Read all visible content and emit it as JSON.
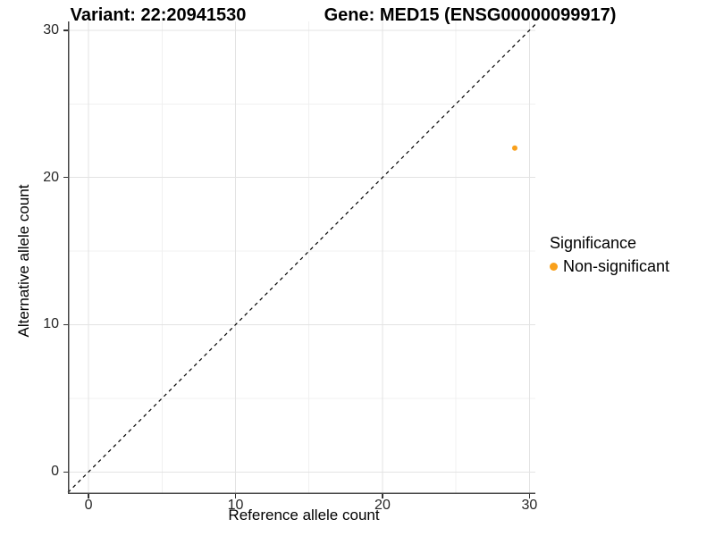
{
  "chart_data": {
    "type": "scatter",
    "titles": {
      "left": "Variant: 22:20941530",
      "right": "Gene: MED15 (ENSG00000099917)"
    },
    "xlabel": "Reference allele count",
    "ylabel": "Alternative allele count",
    "xlim": [
      -1.4,
      30.4
    ],
    "ylim": [
      -1.5,
      30.6
    ],
    "x_ticks": [
      0,
      10,
      20,
      30
    ],
    "y_ticks": [
      0,
      10,
      20,
      30
    ],
    "x_minor_ticks": [
      5,
      15,
      25
    ],
    "y_minor_ticks": [
      5,
      15,
      25
    ],
    "grid": true,
    "identity_line": {
      "type": "y=x",
      "style": "dashed",
      "color": "#000000"
    },
    "series": [
      {
        "name": "Non-significant",
        "color": "#F9A01B",
        "point_radius": 3,
        "points": [
          {
            "x": 29,
            "y": 22
          }
        ]
      }
    ],
    "legend": {
      "title": "Significance",
      "position": "right",
      "items": [
        {
          "label": "Non-significant",
          "color": "#F9A01B"
        }
      ]
    },
    "colors": {
      "background": "#FFFFFF",
      "grid_major": "#E3E3E3",
      "grid_minor": "#F0F0F0",
      "axis_line": "#474747",
      "tick_mark": "#333333",
      "tick_label": "#262626"
    }
  }
}
